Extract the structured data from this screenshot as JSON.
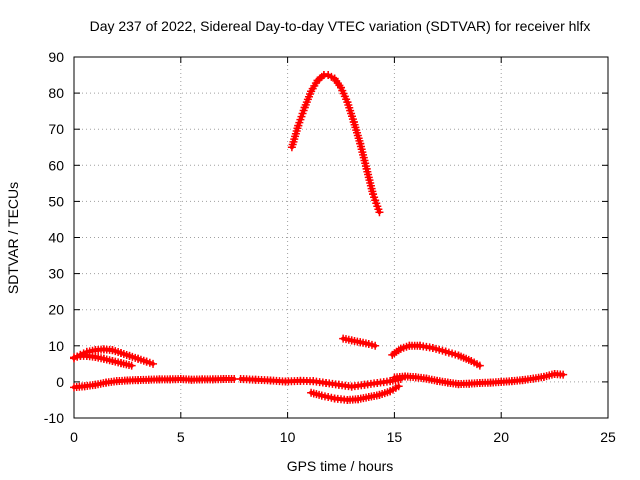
{
  "chart_data": {
    "type": "scatter",
    "title": "Day 237 of 2022, Sidereal Day-to-day VTEC variation (SDTVAR) for receiver hlfx",
    "xlabel": "GPS time / hours",
    "ylabel": "SDTVAR / TECUs",
    "xlim": [
      0,
      25
    ],
    "ylim": [
      -10,
      90
    ],
    "xticks": [
      0,
      5,
      10,
      15,
      20,
      25
    ],
    "yticks": [
      -10,
      0,
      10,
      20,
      30,
      40,
      50,
      60,
      70,
      80,
      90
    ],
    "grid": true,
    "legend": "none",
    "series_color": "#ff0000",
    "series": [
      {
        "name": "arc-high",
        "x": [
          10.2,
          10.5,
          10.8,
          11.1,
          11.4,
          11.7,
          11.9,
          12.2,
          12.5,
          12.8,
          13.1,
          13.4,
          13.7,
          14.0,
          14.3
        ],
        "y": [
          65,
          71,
          76,
          80.5,
          83.5,
          85,
          85,
          84,
          81.5,
          77.5,
          72,
          66,
          59,
          52,
          47
        ]
      },
      {
        "name": "arc-early-upper",
        "x": [
          0.0,
          0.3,
          0.6,
          1.0,
          1.4,
          1.8,
          2.2,
          2.6,
          3.0,
          3.4,
          3.7
        ],
        "y": [
          6.5,
          7.5,
          8.3,
          8.8,
          9.0,
          8.8,
          8.0,
          7.2,
          6.4,
          5.6,
          5.0
        ]
      },
      {
        "name": "arc-early-lower",
        "x": [
          0.0,
          0.3,
          0.6,
          1.0,
          1.4,
          1.8,
          2.2,
          2.7
        ],
        "y": [
          6.8,
          7.2,
          7.2,
          6.9,
          6.4,
          5.8,
          5.2,
          4.5
        ]
      },
      {
        "name": "arc-mid-small",
        "x": [
          12.6,
          13.0,
          13.4,
          13.8,
          14.1
        ],
        "y": [
          12,
          11.5,
          11,
          10.5,
          10
        ]
      },
      {
        "name": "arc-afternoon",
        "x": [
          14.9,
          15.3,
          15.7,
          16.2,
          16.8,
          17.4,
          18.0,
          18.6,
          19.0
        ],
        "y": [
          7.5,
          9.2,
          10.0,
          10.0,
          9.4,
          8.4,
          7.3,
          5.8,
          4.5
        ]
      },
      {
        "name": "arc-baseline-a",
        "x": [
          0.0,
          0.5,
          1.0,
          1.5,
          2.0,
          2.5,
          3.0,
          3.5,
          4.0,
          4.5,
          5.0,
          5.5,
          6.0,
          6.5,
          7.0,
          7.5
        ],
        "y": [
          -1.5,
          -1.2,
          -0.8,
          -0.2,
          0.2,
          0.4,
          0.5,
          0.6,
          0.7,
          0.7,
          0.8,
          0.6,
          0.7,
          0.7,
          0.8,
          0.8
        ]
      },
      {
        "name": "arc-baseline-b",
        "x": [
          7.8,
          8.5,
          9.2,
          9.9,
          10.6,
          11.2,
          11.8,
          12.4,
          13.0,
          13.6,
          14.2,
          14.8,
          15.3
        ],
        "y": [
          0.8,
          0.6,
          0.4,
          0.1,
          0.3,
          0.2,
          -0.3,
          -0.8,
          -1.3,
          -0.8,
          -0.3,
          0.2,
          0.8
        ]
      },
      {
        "name": "arc-baseline-c",
        "x": [
          15.0,
          15.5,
          16.0,
          16.5,
          17.0,
          17.5,
          18.0,
          18.5,
          19.0,
          19.5,
          20.0,
          20.5,
          21.0,
          21.5,
          22.0,
          22.5,
          22.9
        ],
        "y": [
          1.2,
          1.5,
          1.3,
          0.9,
          0.3,
          -0.2,
          -0.6,
          -0.5,
          -0.3,
          -0.2,
          0.0,
          0.2,
          0.5,
          0.9,
          1.4,
          2.2,
          2.0
        ]
      },
      {
        "name": "arc-dip",
        "x": [
          11.1,
          11.6,
          12.2,
          12.8,
          13.3,
          13.8,
          14.3,
          14.8,
          15.2
        ],
        "y": [
          -3,
          -3.8,
          -4.6,
          -5.0,
          -4.8,
          -4.2,
          -3.6,
          -2.6,
          -1.2
        ]
      }
    ]
  }
}
